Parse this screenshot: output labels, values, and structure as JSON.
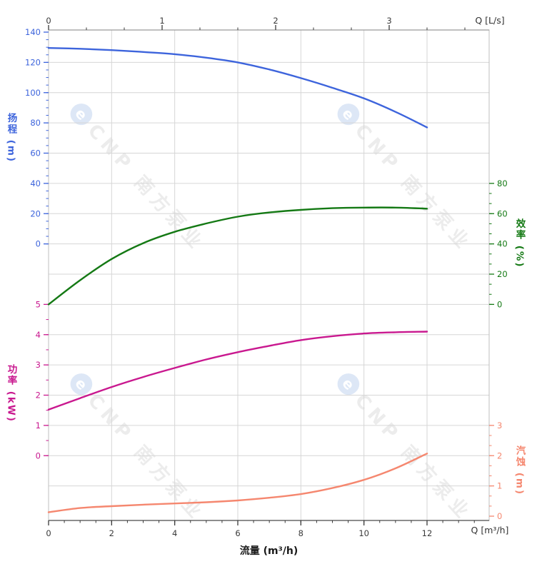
{
  "watermark": {
    "text": "CNP 南方泵业",
    "logo": "cnp-drop-logo",
    "logo_letter": "e"
  },
  "chart_data": {
    "type": "line",
    "title": "",
    "legend": "none",
    "grid": true,
    "x_axis_bottom": {
      "label": "流量 (m³/h)",
      "unit_label": "Q [m³/h]",
      "major_ticks": [
        0,
        2,
        4,
        6,
        8,
        10,
        12
      ],
      "minor_step": 0.5,
      "minor_max": 13.5,
      "range": [
        0,
        13.97
      ],
      "tick_color": "#3a3a3a"
    },
    "x_axis_top": {
      "unit_label": "Q [L/s]",
      "major_ticks": [
        0,
        1,
        2,
        3
      ],
      "minor_step": 0.33333,
      "minor_max": 3.7,
      "m3h_per_unit": 3.6,
      "tick_color": "#3a3a3a"
    },
    "y_axes": [
      {
        "id": "head",
        "title": "扬程 (m)",
        "color": "#3D64DC",
        "side": "left",
        "major_ticks": [
          140,
          120,
          100,
          80,
          60,
          40,
          20,
          0
        ],
        "minor_step": 5,
        "range": [
          0,
          140
        ]
      },
      {
        "id": "eff",
        "title": "效率 (%)",
        "color": "#147914",
        "side": "right",
        "major_ticks": [
          80,
          60,
          40,
          20,
          0
        ],
        "minor_step": 6.6667,
        "range": [
          0,
          80
        ]
      },
      {
        "id": "power",
        "title": "功率 (kW)",
        "color": "#C9188F",
        "side": "left",
        "major_ticks": [
          5,
          4,
          3,
          2,
          1,
          0
        ],
        "minor_step": 0.5,
        "range": [
          0,
          5
        ]
      },
      {
        "id": "npsh",
        "title": "汽蚀 (m)",
        "color": "#F5876F",
        "side": "right",
        "major_ticks": [
          3,
          2,
          1,
          0
        ],
        "minor_step": 0.33333,
        "range": [
          0,
          3
        ]
      }
    ],
    "x": [
      0,
      1,
      2,
      3,
      4,
      5,
      6,
      7,
      8,
      9,
      10,
      11,
      12
    ],
    "series": [
      {
        "name": "扬程",
        "axis": "head",
        "color": "#3D64DC",
        "values": [
          129.5,
          129,
          128.1,
          126.9,
          125.4,
          123.1,
          120,
          115.3,
          109.6,
          103.2,
          96.2,
          87.3,
          77
        ]
      },
      {
        "name": "效率",
        "axis": "eff",
        "color": "#147914",
        "values": [
          0,
          16,
          30,
          40.5,
          48,
          53.5,
          58,
          60.8,
          62.5,
          63.6,
          64,
          64,
          63.3
        ]
      },
      {
        "name": "功率",
        "axis": "power",
        "color": "#C9188F",
        "values": [
          1.52,
          1.9,
          2.27,
          2.6,
          2.9,
          3.18,
          3.42,
          3.63,
          3.82,
          3.95,
          4.04,
          4.08,
          4.1
        ]
      },
      {
        "name": "汽蚀",
        "axis": "npsh",
        "color": "#F5876F",
        "values": [
          0.13,
          0.27,
          0.33,
          0.38,
          0.42,
          0.46,
          0.52,
          0.61,
          0.73,
          0.93,
          1.2,
          1.58,
          2.07
        ]
      }
    ]
  }
}
